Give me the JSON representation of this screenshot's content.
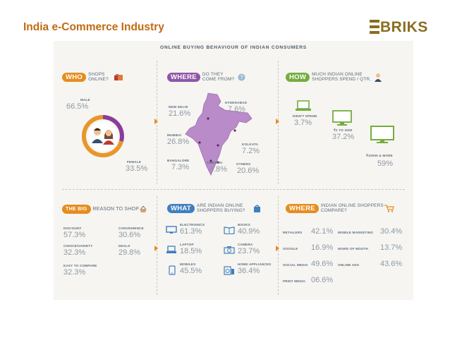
{
  "slide": {
    "title": "India e-Commerce Industry",
    "logo_text": "BRIKS",
    "brand_color": "#8a6d1f",
    "title_color": "#c26a12"
  },
  "infographic": {
    "header": "ONLINE BUYING BEHAVIOUR OF INDIAN CONSUMERS",
    "who": {
      "tag": "WHO",
      "sub": "SHOPS ONLINE?",
      "male_label": "MALE",
      "male_value": "66.5%",
      "female_label": "FEMALE",
      "female_value": "33.5%"
    },
    "where_from": {
      "tag": "WHERE",
      "sub": "DO THEY COME FROM?",
      "cities": [
        {
          "label": "NEW DELHI",
          "value": "21.6%"
        },
        {
          "label": "HYDERABAD",
          "value": "7.6%"
        },
        {
          "label": "MUMBAI",
          "value": "26.8%"
        },
        {
          "label": "KOLKATA",
          "value": "7.2%"
        },
        {
          "label": "BANGALORE",
          "value": "7.3%"
        },
        {
          "label": "CHENNAI",
          "value": "4.8%"
        },
        {
          "label": "OTHERS",
          "value": "20.6%"
        }
      ]
    },
    "how": {
      "tag": "HOW",
      "sub": "MUCH INDIAN ONLINE SHOPPERS SPEND / QTR.",
      "tiers": [
        {
          "label": "DIDN'T SPEND",
          "value": "3.7%"
        },
        {
          "label": "₹1 TO 3000",
          "value": "37.2%"
        },
        {
          "label": "₹10000 & MORE",
          "value": "59%"
        }
      ]
    },
    "big": {
      "tag": "THE BIG",
      "sub": "REASON TO SHOP",
      "reasons": [
        {
          "label": "DISCOUNT",
          "value": "57.3%"
        },
        {
          "label": "CONVENIENCE",
          "value": "30.6%"
        },
        {
          "label": "CHOICE/VARIETY",
          "value": "32.3%"
        },
        {
          "label": "DEALS",
          "value": "29.8%"
        },
        {
          "label": "EASY TO COMPARE",
          "value": "32.3%"
        }
      ]
    },
    "what": {
      "tag": "WHAT",
      "sub": "ARE INDIAN ONLINE SHOPPERS BUYING?",
      "items": [
        {
          "label": "ELECTRONICS",
          "value": "61.3%"
        },
        {
          "label": "BOOKS",
          "value": "40.9%"
        },
        {
          "label": "LAPTOP",
          "value": "18.5%"
        },
        {
          "label": "CAMERA",
          "value": "23.7%"
        },
        {
          "label": "MOBILES",
          "value": "45.5%"
        },
        {
          "label": "HOME APPLIANCES",
          "value": "36.4%"
        }
      ]
    },
    "where_compare": {
      "tag": "WHERE",
      "sub": "INDIAN ONLINE SHOPPERS COMPARE?",
      "sources": [
        {
          "label": "RETAILERS",
          "value": "42.1%"
        },
        {
          "label": "MOBILE MARKETING",
          "value": "30.4%"
        },
        {
          "label": "GOOGLE",
          "value": "16.9%"
        },
        {
          "label": "WORD OF MOUTH",
          "value": "13.7%"
        },
        {
          "label": "SOCIAL MEDIA",
          "value": "49.6%"
        },
        {
          "label": "ONLINE ADS",
          "value": "43.6%"
        },
        {
          "label": "PRINT MEDIA",
          "value": "06.6%"
        }
      ]
    },
    "colors": {
      "orange": "#e58d1e",
      "purple": "#8f56a6",
      "green": "#74ad3f",
      "blue": "#3f7fbf",
      "map": "#b98bc9"
    },
    "icons": [
      "shopping-bag-icon",
      "question-icon",
      "businessman-icon",
      "basket-icon",
      "bag-icon",
      "cart-icon",
      "laptop-icon",
      "monitor-icon",
      "book-icon",
      "camera-icon",
      "mobile-icon",
      "appliance-icon"
    ]
  }
}
